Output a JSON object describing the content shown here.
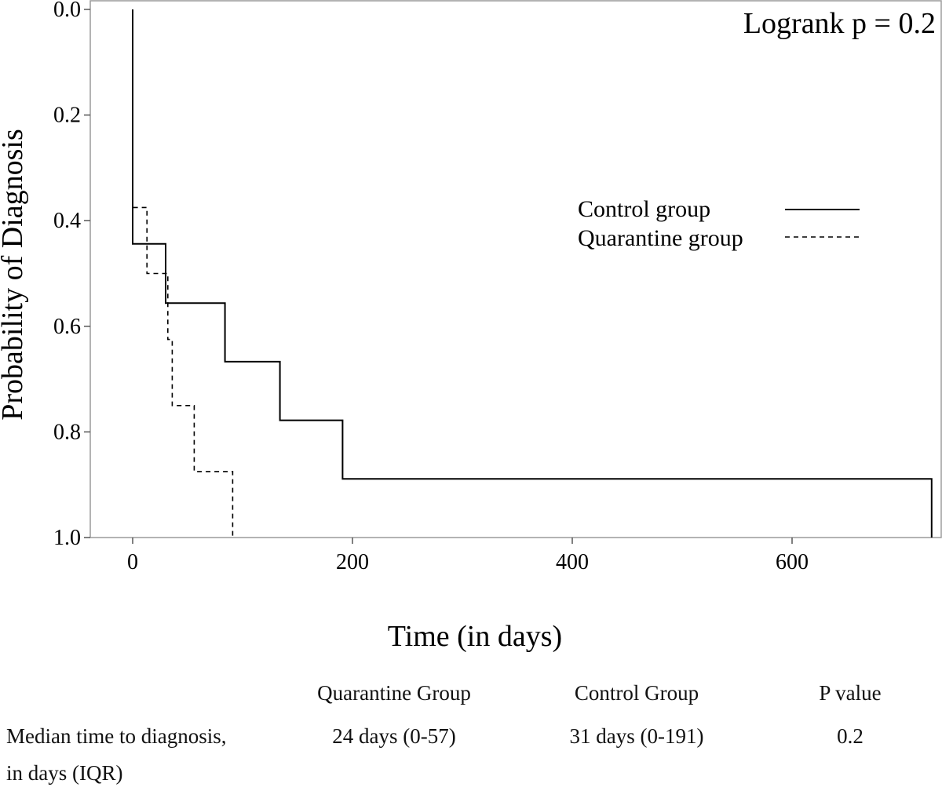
{
  "chart_data": {
    "type": "line",
    "subtype": "kaplan-meier step",
    "xlabel": "Time (in days)",
    "ylabel": "Probability of Diagnosis",
    "xlim": [
      -38,
      730
    ],
    "ylim": [
      0.0,
      1.0
    ],
    "y_inverted": true,
    "xticks": [
      0,
      200,
      400,
      600
    ],
    "yticks": [
      0.0,
      0.2,
      0.4,
      0.6,
      0.8,
      1.0
    ],
    "ytick_labels": [
      "0.0",
      "0.2",
      "0.4",
      "0.6",
      "0.8",
      "1.0"
    ],
    "annotation": "Logrank p = 0.2",
    "legend_position": "right",
    "grid": false,
    "series": [
      {
        "name": "Control group",
        "style": "solid",
        "points": [
          [
            0,
            0.0
          ],
          [
            0,
            0.444
          ],
          [
            30,
            0.444
          ],
          [
            30,
            0.556
          ],
          [
            84,
            0.556
          ],
          [
            84,
            0.667
          ],
          [
            134,
            0.667
          ],
          [
            134,
            0.778
          ],
          [
            191,
            0.778
          ],
          [
            191,
            0.889
          ],
          [
            727,
            0.889
          ],
          [
            727,
            1.0
          ]
        ]
      },
      {
        "name": "Quarantine group",
        "style": "dashed",
        "points": [
          [
            0,
            0.0
          ],
          [
            0,
            0.375
          ],
          [
            13,
            0.375
          ],
          [
            13,
            0.5
          ],
          [
            32,
            0.5
          ],
          [
            32,
            0.625
          ],
          [
            36,
            0.625
          ],
          [
            36,
            0.75
          ],
          [
            56,
            0.75
          ],
          [
            56,
            0.875
          ],
          [
            91,
            0.875
          ],
          [
            91,
            1.0
          ]
        ]
      }
    ]
  },
  "table": {
    "headers": [
      "Quarantine Group",
      "Control Group",
      "P value"
    ],
    "row_label_line1": "Median time to diagnosis,",
    "row_label_line2": "in days (IQR)",
    "values": [
      "24 days (0-57)",
      "31 days (0-191)",
      "0.2"
    ]
  }
}
